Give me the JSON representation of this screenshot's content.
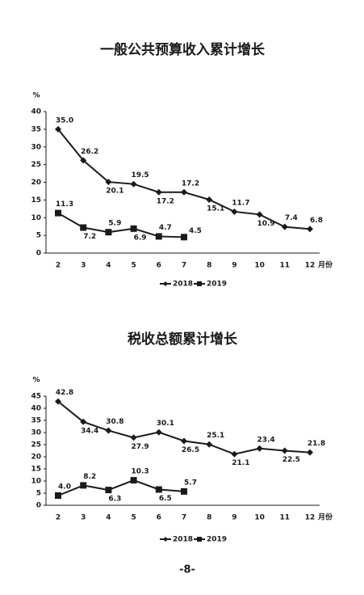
{
  "chart_data": [
    {
      "type": "line",
      "title": "一般公共预算收入累计增长",
      "y_label": "%",
      "x_label": "月份",
      "categories": [
        "2",
        "3",
        "4",
        "5",
        "6",
        "7",
        "8",
        "9",
        "10",
        "11",
        "12"
      ],
      "series": [
        {
          "name": "2018",
          "color": "#1a1a1a",
          "marker": "diamond",
          "values": [
            35.0,
            26.2,
            20.1,
            19.5,
            17.2,
            17.2,
            15.1,
            11.7,
            10.9,
            7.4,
            6.8
          ],
          "value_labels": [
            "35.0",
            "26.2",
            "20.1",
            "19.5",
            "17.2",
            "17.2",
            "15.1",
            "11.7",
            "10.9",
            "7.4",
            "6.8"
          ]
        },
        {
          "name": "2019",
          "color": "#1a1a1a",
          "marker": "square",
          "values": [
            11.3,
            7.2,
            5.9,
            6.9,
            4.7,
            4.5,
            null,
            null,
            null,
            null,
            null
          ],
          "value_labels": [
            "11.3",
            "7.2",
            "5.9",
            "6.9",
            "4.7",
            "4.5",
            null,
            null,
            null,
            null,
            null
          ]
        }
      ],
      "ylim": [
        0,
        40
      ],
      "yticks": [
        0,
        5,
        10,
        15,
        20,
        25,
        30,
        35,
        40
      ],
      "legend": "bottom"
    },
    {
      "type": "line",
      "title": "税收总额累计增长",
      "y_label": "%",
      "x_label": "月份",
      "categories": [
        "2",
        "3",
        "4",
        "5",
        "6",
        "7",
        "8",
        "9",
        "10",
        "11",
        "12"
      ],
      "series": [
        {
          "name": "2018",
          "color": "#1a1a1a",
          "marker": "diamond",
          "values": [
            42.8,
            34.4,
            30.8,
            27.9,
            30.1,
            26.5,
            25.1,
            21.1,
            23.4,
            22.5,
            21.8
          ],
          "value_labels": [
            "42.8",
            "34.4",
            "30.8",
            "27.9",
            "30.1",
            "26.5",
            "25.1",
            "21.1",
            "23.4",
            "22.5",
            "21.8"
          ]
        },
        {
          "name": "2019",
          "color": "#1a1a1a",
          "marker": "square",
          "values": [
            4.0,
            8.2,
            6.3,
            10.3,
            6.5,
            5.7,
            null,
            null,
            null,
            null,
            null
          ],
          "value_labels": [
            "4.0",
            "8.2",
            "6.3",
            "10.3",
            "6.5",
            "5.7",
            null,
            null,
            null,
            null,
            null
          ]
        }
      ],
      "ylim": [
        0,
        45
      ],
      "yticks": [
        0,
        5,
        10,
        15,
        20,
        25,
        30,
        35,
        40,
        45
      ],
      "legend": "bottom"
    }
  ],
  "page_number": "-8-"
}
